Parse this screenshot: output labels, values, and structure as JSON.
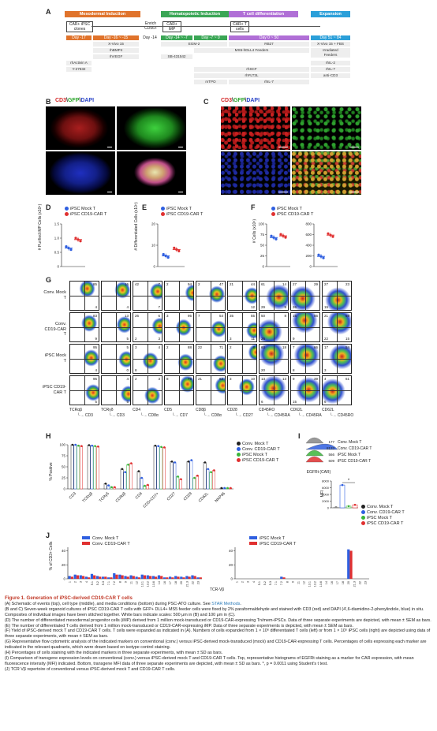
{
  "panels": {
    "A": "A",
    "B": "B",
    "C": "C",
    "D": "D",
    "E": "E",
    "F": "F",
    "G": "G",
    "H": "H",
    "I": "I",
    "J": "J"
  },
  "schematic": {
    "stages": [
      {
        "label": "Mesodermal Induction",
        "color": "#e0732b"
      },
      {
        "label": "Hematopoietic Induction",
        "color": "#3aa655"
      },
      {
        "label": "T cell differentiation",
        "color": "#b06fd6"
      },
      {
        "label": "Expansion",
        "color": "#2b9fd9"
      }
    ],
    "cell_types": [
      "CAR+ iPSC clones",
      "Enrich CD56+",
      "CAR+ iMP",
      "CAR+ T cells"
    ],
    "day_labels": [
      "Day -17",
      "Day -16 ~ -15",
      "Day -14",
      "Day -14 ~ -7",
      "Day -7 ~ 0",
      "Day 0 ~ 50",
      "Day 51 ~ 84"
    ],
    "media": {
      "col1": [
        "X-Vivo 15",
        "rhBMP4",
        "rhVEGF",
        "rhActivin A",
        "Y-27632"
      ],
      "col2": [
        "EGM-2",
        "SB-431542"
      ],
      "col2b": [
        "mTPO"
      ],
      "col3": [
        "RB27",
        "MS5-hDLL4 Feeders",
        "rhSCF",
        "rhFLT3L",
        "rhIL-7"
      ],
      "col4": [
        "X-Vivo 15 + FBS",
        "Irradiated Feeders",
        "rhIL-2",
        "rhIL-7",
        "anti-CD3"
      ]
    }
  },
  "stain": {
    "cd3": "CD3",
    "gfp": "GFP",
    "dapi": "DAPI",
    "sep": "\\"
  },
  "panelD": {
    "ylabel": "# Purified iMP Cells (x10⁴)",
    "legend": [
      "iPSC Mock T",
      "iPSC CD19-CAR T"
    ],
    "yticks": [
      "0",
      "0.5",
      "1.0",
      "1.5"
    ],
    "values": [
      0.65,
      0.95
    ]
  },
  "panelE": {
    "ylabel": "# Differentiated Cells (x10⁴)",
    "legend": [
      "iPSC Mock T",
      "iPSC CD19-CAR T"
    ],
    "yticks": [
      "0",
      "10",
      "20"
    ],
    "values": [
      5,
      8
    ]
  },
  "panelF": {
    "ylabel": "# Cells (x10⁶)",
    "legend": [
      "iPSC Mock T",
      "iPSC CD19-CAR T"
    ],
    "yticks_left": [
      "0",
      "25",
      "50",
      "75",
      "100"
    ],
    "yticks_right": [
      "0",
      "200",
      "400",
      "600",
      "800"
    ],
    "values_left": [
      68,
      72
    ],
    "values_right": [
      190,
      590
    ]
  },
  "panelG": {
    "rows": [
      "Conv. Mock T",
      "Conv. CD19-CAR T",
      "iPSC Mock T",
      "iPSC CD19-CAR T"
    ],
    "xlabels": [
      [
        "TCRαβ",
        "CD3"
      ],
      [
        "TCRγδ",
        "CD3"
      ],
      [
        "CD4",
        "CD8α"
      ],
      [
        "CD5",
        "CD7"
      ],
      [
        "CD8β",
        "CD8α"
      ],
      [
        "CD28",
        "CD27"
      ],
      [
        "CD45RO",
        "CD45RA"
      ],
      [
        "CD62L",
        "CD45RA"
      ],
      [
        "CD62L",
        "CD45RO"
      ]
    ],
    "quads": [
      [
        [
          "",
          "85",
          "",
          "4"
        ],
        [
          "",
          "16",
          "",
          "4"
        ],
        [
          "42",
          "7",
          "",
          "7"
        ],
        [
          "2",
          "94",
          "",
          ""
        ],
        [
          "2",
          "47",
          "",
          ""
        ],
        [
          "21",
          "44",
          "",
          "12"
        ],
        [
          "61",
          "14",
          "29",
          "5"
        ],
        [
          "27",
          "29",
          "26",
          ""
        ],
        [
          "27",
          "23",
          "15",
          ""
        ]
      ],
      [
        [
          "",
          "83",
          "",
          "9"
        ],
        [
          "",
          "13",
          "",
          "5"
        ],
        [
          "26",
          "6",
          "2",
          "3"
        ],
        [
          "3",
          "95",
          "",
          ""
        ],
        [
          "7",
          "54",
          "",
          ""
        ],
        [
          "35",
          "55",
          "3",
          "11"
        ],
        [
          "50",
          "8",
          "26",
          ""
        ],
        [
          "15",
          "56",
          "9",
          ""
        ],
        [
          "21",
          "59",
          "22",
          "15"
        ]
      ],
      [
        [
          "",
          "95",
          "",
          "4"
        ],
        [
          "",
          "5",
          "",
          "0"
        ],
        [
          "3",
          "4",
          "8",
          ""
        ],
        [
          "2",
          "88",
          "",
          ""
        ],
        [
          "22",
          "71",
          "",
          ""
        ],
        [
          "2",
          "8",
          "",
          ""
        ],
        [
          "60",
          "18",
          "20",
          ""
        ],
        [
          "7",
          "66",
          "8",
          ""
        ],
        [
          "17",
          "54",
          "3",
          ""
        ]
      ],
      [
        [
          "",
          "95",
          "",
          "5"
        ],
        [
          "",
          "4",
          "",
          "5"
        ],
        [
          "2",
          "3",
          "",
          ""
        ],
        [
          "8",
          "79",
          "",
          ""
        ],
        [
          "21",
          "62",
          "",
          ""
        ],
        [
          "3",
          "10",
          "",
          ""
        ],
        [
          "13",
          "13",
          "6",
          ""
        ],
        [
          "9",
          "39",
          "15",
          ""
        ],
        [
          "4",
          "61",
          "6",
          ""
        ]
      ]
    ]
  },
  "panelH": {
    "ylabel": "% Positive",
    "yticks": [
      "0",
      "25",
      "50",
      "75",
      "100"
    ],
    "categories": [
      "CD3",
      "TCRαβ",
      "TCRγδ",
      "CD8αβ",
      "CD4",
      "CD5+CD7+",
      "CD27",
      "CD28",
      "CD62L",
      "NKP46"
    ],
    "legend": [
      "Conv. Mock T",
      "Conv. CD19-CAR T",
      "iPSC Mock T",
      "iPSC CD19-CAR T"
    ],
    "series": [
      [
        100,
        99,
        12,
        45,
        40,
        98,
        62,
        62,
        60,
        2
      ],
      [
        100,
        98,
        8,
        38,
        25,
        97,
        60,
        65,
        45,
        2
      ],
      [
        98,
        97,
        4,
        55,
        7,
        95,
        28,
        25,
        38,
        2
      ],
      [
        97,
        96,
        4,
        58,
        9,
        94,
        22,
        30,
        42,
        2
      ]
    ]
  },
  "panelI": {
    "hist_values": [
      "177",
      "8133",
      "566",
      "609"
    ],
    "hist_labels": [
      "Conv. Mock T",
      "Conv. CD19-CAR T",
      "iPSC Mock T",
      "iPSC CD19-CAR T"
    ],
    "xlabel": "EGFRt (CAR)",
    "ylabel": "MFI",
    "yticks": [
      "0",
      "2000",
      "4000",
      "6000",
      "8000"
    ],
    "values": [
      200,
      6800,
      500,
      900
    ],
    "sig": "*",
    "legend": [
      "Conv. Mock T",
      "Conv. CD19-CAR T",
      "iPSC Mock T",
      "iPSC CD19-CAR T"
    ]
  },
  "panelJ": {
    "ylabel": "% of CD3+ Cells",
    "xlabel": "TCR-Vβ",
    "yticks": [
      "0",
      "20",
      "40"
    ],
    "legend_left": [
      "Conv. Mock T",
      "Conv. CD19-CAR T"
    ],
    "legend_right": [
      "iPSC Mock T",
      "iPSC CD19-CAR T"
    ],
    "vb_labels": [
      "1",
      "2",
      "3",
      "4",
      "5.1",
      "5.2",
      "5.3",
      "7.1",
      "7.2",
      "8",
      "9",
      "11",
      "12",
      "13.1",
      "13.2",
      "13.6",
      "14",
      "16",
      "17",
      "18",
      "20",
      "21.3",
      "22",
      "23"
    ],
    "left_a": [
      4,
      6,
      5,
      3,
      7,
      4,
      3,
      2,
      8,
      6,
      4,
      5,
      3,
      6,
      5,
      4,
      5,
      2,
      3,
      4,
      3,
      4,
      5,
      2
    ],
    "left_b": [
      3,
      5,
      4,
      2,
      5,
      3,
      3,
      2,
      6,
      5,
      3,
      4,
      2,
      5,
      4,
      3,
      4,
      2,
      2,
      3,
      2,
      3,
      4,
      2
    ],
    "right_a": [
      0,
      0,
      0,
      0,
      0,
      0,
      0,
      0,
      3,
      0,
      0,
      0,
      0,
      0,
      0,
      0,
      0,
      0,
      0,
      0,
      42,
      0,
      0,
      0
    ],
    "right_b": [
      0,
      0,
      0,
      0,
      0,
      0,
      0,
      0,
      2,
      0,
      0,
      0,
      0,
      0,
      0,
      0,
      0,
      0,
      0,
      0,
      40,
      0,
      0,
      0
    ]
  },
  "caption": {
    "title": "Figure 1. Generation of iPSC-derived CD19-CAR T cells",
    "A_pre": "(A) Schematic of events (top), cell type (middle), and media conditions (bottom) during PSC-ATO culture. See ",
    "A_link": "STAR Methods",
    "A_post": ".",
    "BC": "(B and C) Seven-week organoid cultures of iPSC CD19-CAR T cells with GFP+ DLL4+ MS5 feeder cells were fixed by 2% paraformaldehyde and stained with CD3 (red) and DAPI (4′,6-diamidino-2-phenylindole, blue) in situ. Composites of individual images have been stitched together. White bars indicate scales: 500 μm in (B) and 100 μm in (C).",
    "D": "(D) The number of differentiated mesodermal progenitor cells (iMP) derived from 1 million mock-transduced or CD19-CAR-expressing Tn/mem-iPSCs. Data of three separate experiments are depicted, with mean ± SEM as bars.",
    "E": "(E) The number of differentiated T cells derived from 1 million mock-transduced or CD19-CAR-expressing iMP. Data of three separate experiments is depicted, with mean ± SEM as bars.",
    "F": "(F) Yield of iPSC-derived mock T and CD19-CAR T cells. T cells were expanded as indicated in (A). Numbers of cells expanded from 1 × 10⁶ differentiated T cells (left) or from 1 × 10⁵ iPSC cells (right) are depicted using data of three separate experiments, with mean ± SEM as bars.",
    "G": "(G) Representative flow cytometric analysis of the indicated markers on conventional (conv.) versus iPSC-derived mock-transduced (mock) and CD19-CAR-expressing T cells. Percentages of cells expressing each marker are indicated in the relevant quadrants, which were drawn based on isotype control staining.",
    "H": "(H) Percentages of cells staining with the indicated markers in three separate experiments, with mean ± SD as bars.",
    "I": "(I) Comparison of transgene expression levels on conventional (conv.) versus iPSC-derived mock T and CD19-CAR T cells. Top, representative histograms of EGFRt staining as a marker for CAR expression, with mean fluorescence intensity (MFI) indicated. Bottom, transgene MFI data of three separate experiments are depicted, with mean ± SD as bars. *, p = 0.0011 using Student's t test.",
    "J": "(J) TCR Vβ repertoire of conventional versus iPSC-derived mock T and CD19-CAR T cells."
  }
}
